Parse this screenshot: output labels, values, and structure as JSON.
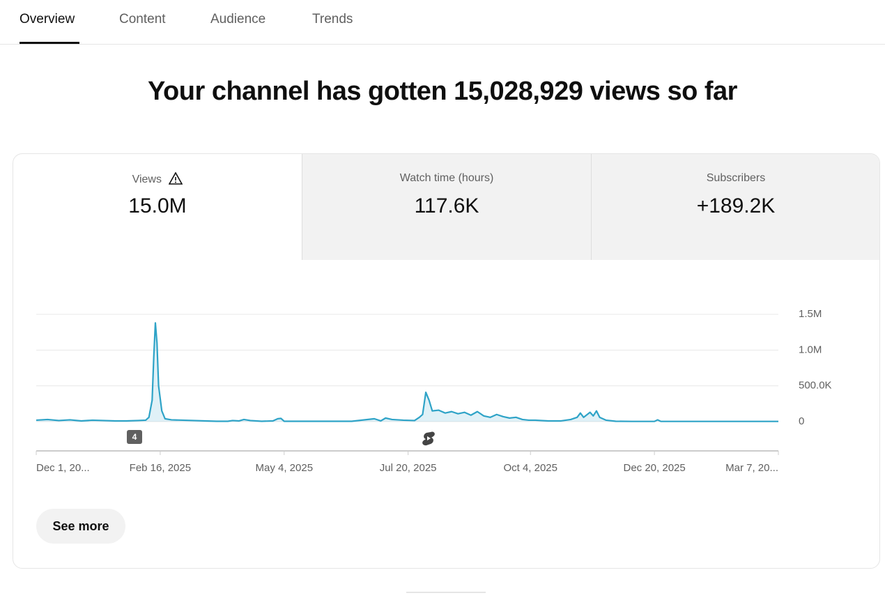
{
  "tabs": [
    "Overview",
    "Content",
    "Audience",
    "Trends"
  ],
  "heading": "Your channel has gotten 15,028,929 views so far",
  "metrics": [
    {
      "label": "Views",
      "value": "15.0M"
    },
    {
      "label": "Watch time (hours)",
      "value": "117.6K"
    },
    {
      "label": "Subscribers",
      "value": "+189.2K"
    }
  ],
  "chart_data": {
    "type": "line",
    "color": "#2ea3c7",
    "x": [
      0,
      7,
      14,
      21,
      28,
      35,
      42,
      49,
      56,
      63,
      68,
      70,
      72,
      73,
      74,
      75,
      76,
      78,
      80,
      84,
      91,
      98,
      105,
      112,
      119,
      122,
      126,
      129,
      133,
      140,
      147,
      150,
      152,
      154,
      168,
      182,
      196,
      210,
      214,
      217,
      221,
      228,
      235,
      238,
      240,
      242,
      244,
      246,
      250,
      254,
      258,
      262,
      266,
      270,
      274,
      278,
      282,
      286,
      290,
      294,
      298,
      302,
      306,
      310,
      318,
      326,
      332,
      336,
      338,
      340,
      344,
      346,
      348,
      350,
      354,
      360,
      370,
      384,
      386,
      388,
      400,
      420,
      440,
      461
    ],
    "values": [
      20000,
      30000,
      15000,
      25000,
      10000,
      20000,
      15000,
      10000,
      10000,
      15000,
      20000,
      60000,
      300000,
      900000,
      1380000,
      1100000,
      500000,
      150000,
      40000,
      25000,
      20000,
      15000,
      10000,
      5000,
      5000,
      15000,
      10000,
      30000,
      15000,
      5000,
      10000,
      40000,
      45000,
      5000,
      5000,
      5000,
      5000,
      40000,
      10000,
      50000,
      30000,
      20000,
      15000,
      60000,
      100000,
      410000,
      300000,
      150000,
      160000,
      120000,
      140000,
      110000,
      130000,
      90000,
      140000,
      80000,
      60000,
      100000,
      70000,
      50000,
      60000,
      30000,
      20000,
      20000,
      10000,
      10000,
      30000,
      60000,
      120000,
      60000,
      130000,
      80000,
      150000,
      60000,
      20000,
      5000,
      3000,
      3000,
      25000,
      3000,
      3000,
      3000,
      3000,
      3000
    ],
    "xlim": [
      0,
      461
    ],
    "xticks": [
      {
        "value": 0,
        "label": "Dec 1, 20..."
      },
      {
        "value": 77,
        "label": "Feb 16, 2025"
      },
      {
        "value": 154,
        "label": "May 4, 2025"
      },
      {
        "value": 231,
        "label": "Jul 20, 2025"
      },
      {
        "value": 307,
        "label": "Oct 4, 2025"
      },
      {
        "value": 384,
        "label": "Dec 20, 2025"
      },
      {
        "value": 461,
        "label": "Mar 7, 20..."
      }
    ],
    "ylim": [
      0,
      1500000
    ],
    "yticks": [
      0,
      {
        "value": 500000,
        "label": "500.0K"
      },
      {
        "value": 1000000,
        "label": "1.0M"
      },
      {
        "value": 1500000,
        "label": "1.5M"
      }
    ],
    "grid": true,
    "annotations": [
      "4"
    ]
  },
  "button": "See more"
}
